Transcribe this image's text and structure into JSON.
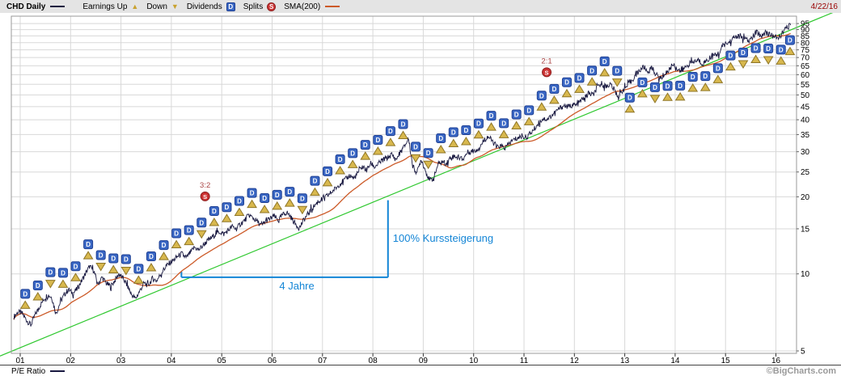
{
  "header": {
    "symbol_label": "CHD Daily",
    "legend": {
      "earnings_up": "Earnings Up",
      "down": "Down",
      "dividends": "Dividends",
      "splits": "Splits",
      "sma": "SMA(200)"
    },
    "date": "4/22/16"
  },
  "footer": {
    "pe_label": "P/E Ratio",
    "watermark": "©BigCharts.com"
  },
  "icons": {
    "dividend_letter": "D",
    "split_letter": "S",
    "earnings_up_glyph": "▲",
    "earnings_down_glyph": "▼"
  },
  "colors": {
    "price": "#181840",
    "sma": "#cc5a28",
    "trend": "#2ec82e",
    "dividend_bg": "#3a67c4",
    "dividend_border": "#1d3f94",
    "earnings_fill": "#d8b84e",
    "earnings_border": "#8f7626",
    "split_bg": "#cc3333",
    "split_border": "#8d1f1f",
    "split_text": "#aa4444",
    "annotation": "#1385d6",
    "grid": "#d8d8d8",
    "axis_text": "#000000",
    "border": "#999999"
  },
  "chart_data": {
    "type": "line",
    "title": "CHD Daily with SMA(200), earnings, dividends and splits, log scale",
    "y_scale": "log",
    "ylim": [
      5,
      100
    ],
    "price_ticks": [
      95,
      90,
      85,
      80,
      75,
      70,
      65,
      60,
      55,
      50,
      45,
      40,
      35,
      30,
      25,
      20,
      15,
      10,
      5
    ],
    "year_labels": [
      "01",
      "02",
      "03",
      "04",
      "05",
      "06",
      "07",
      "08",
      "09",
      "10",
      "11",
      "12",
      "13",
      "14",
      "15",
      "16"
    ],
    "x_end": 2016.31,
    "monthly_close": {
      "name": "CHD close (split-adjusted)",
      "x_start": 2000.875,
      "x_step_years": 0.08333,
      "values": [
        6.8,
        7.1,
        7.0,
        6.6,
        6.3,
        6.9,
        7.4,
        7.9,
        8.3,
        8.1,
        7.0,
        7.7,
        8.3,
        8.7,
        8.4,
        8.7,
        9.3,
        10.0,
        10.7,
        10.3,
        9.1,
        9.7,
        9.2,
        8.9,
        9.4,
        10.0,
        9.6,
        9.0,
        8.3,
        8.0,
        8.6,
        9.2,
        9.0,
        9.6,
        9.4,
        10.0,
        10.6,
        11.0,
        11.3,
        11.7,
        12.0,
        11.5,
        12.1,
        12.7,
        12.4,
        12.9,
        13.4,
        13.8,
        14.3,
        14.6,
        14.3,
        14.8,
        15.3,
        15.0,
        15.7,
        16.2,
        17.0,
        16.5,
        16.0,
        15.4,
        16.1,
        16.4,
        16.8,
        16.2,
        17.0,
        17.4,
        16.6,
        15.7,
        15.1,
        16.2,
        17.1,
        18.0,
        18.8,
        19.4,
        19.8,
        20.4,
        21.1,
        21.9,
        22.8,
        23.4,
        24.3,
        23.6,
        24.9,
        26.3,
        25.4,
        27.0,
        26.2,
        27.1,
        28.0,
        28.4,
        29.3,
        27.9,
        29.8,
        31.4,
        33.8,
        26.3,
        24.8,
        28.1,
        25.4,
        23.2,
        23.6,
        26.8,
        27.4,
        27.0,
        28.4,
        28.9,
        28.5,
        28.1,
        29.8,
        30.1,
        30.4,
        31.4,
        33.3,
        34.4,
        32.9,
        31.2,
        31.6,
        31.0,
        32.4,
        33.4,
        33.9,
        34.5,
        34.1,
        35.4,
        36.9,
        38.9,
        40.4,
        40.2,
        41.4,
        42.9,
        44.4,
        45.4,
        44.9,
        45.7,
        45.5,
        47.4,
        48.9,
        50.4,
        49.9,
        53.4,
        55.4,
        53.9,
        55.1,
        52.4,
        48.9,
        52.3,
        53.9,
        56.4,
        59.4,
        62.4,
        64.4,
        61.4,
        63.9,
        59.9,
        57.9,
        60.4,
        62.4,
        66.1,
        63.4,
        61.4,
        64.4,
        66.4,
        67.4,
        68.4,
        66.1,
        68.1,
        69.9,
        71.4,
        72.9,
        78.6,
        79.4,
        82.1,
        84.9,
        84.1,
        83.1,
        80.9,
        84.4,
        87.9,
        84.9,
        87.9,
        85.9,
        84.9,
        82.9,
        86.9,
        91.4,
        93.6
      ]
    },
    "sma": {
      "name": "SMA(200)",
      "derived": "trailing 200-day mean of close"
    },
    "trend": {
      "name": "trend line",
      "points": [
        [
          2000.95,
          5.1
        ],
        [
          2016.31,
          90
        ]
      ]
    },
    "quarterly_events": {
      "t": [
        2001.1,
        2001.35,
        2001.6,
        2001.85,
        2002.1,
        2002.35,
        2002.6,
        2002.85,
        2003.1,
        2003.35,
        2003.6,
        2003.85,
        2004.1,
        2004.35,
        2004.6,
        2004.85,
        2005.1,
        2005.35,
        2005.6,
        2005.85,
        2006.1,
        2006.35,
        2006.6,
        2006.85,
        2007.1,
        2007.35,
        2007.6,
        2007.85,
        2008.1,
        2008.35,
        2008.6,
        2008.85,
        2009.1,
        2009.35,
        2009.6,
        2009.85,
        2010.1,
        2010.35,
        2010.6,
        2010.85,
        2011.1,
        2011.35,
        2011.6,
        2011.85,
        2012.1,
        2012.35,
        2012.6,
        2012.85,
        2013.1,
        2013.35,
        2013.6,
        2013.85,
        2014.1,
        2014.35,
        2014.6,
        2014.85,
        2015.1,
        2015.35,
        2015.6,
        2015.85,
        2016.1,
        2016.28
      ],
      "dividend_side": "aaaaaaaaaaaaaaaaaaaaaaaaaaaaaaaaaaaaaaaaaaaaaaaabbbbbbbbbbbbbb",
      "earnings_dir": "uuduuududuuuuuduuuuuuuduuuuuuuudduuuuuuuuuuuuuuduuduuuuuududuu"
    },
    "splits": [
      {
        "t": 2004.67,
        "label": "3:2"
      },
      {
        "t": 2011.45,
        "label": "2:1"
      }
    ],
    "annotation": {
      "pct_label": "100% Kurssteigerung",
      "years_label": "4 Jahre",
      "h_line": {
        "t1": 2004.2,
        "t2": 2008.3,
        "price": 9.7
      },
      "v_line": {
        "t": 2008.3,
        "p1": 9.7,
        "p2": 19.4
      }
    }
  }
}
